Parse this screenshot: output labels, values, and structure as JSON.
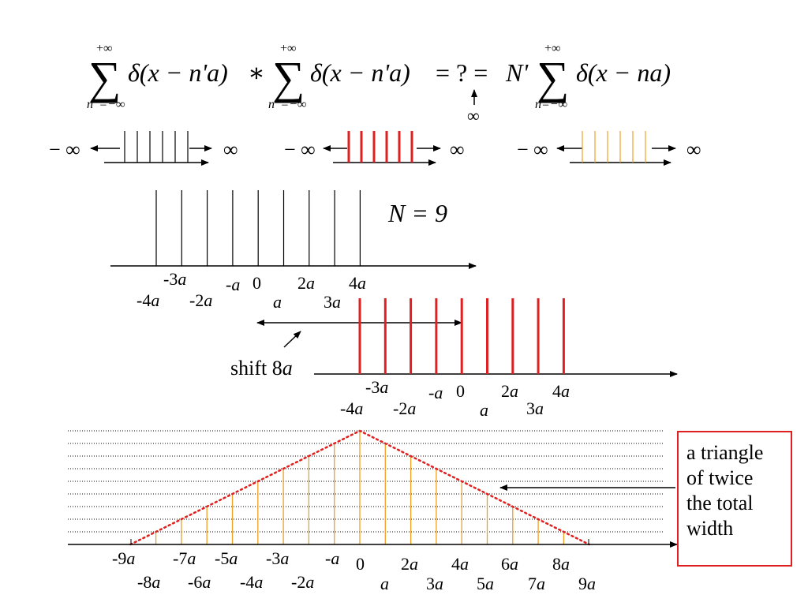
{
  "equation": {
    "sum_upper": "+∞",
    "sum_lower_prime": "n' =−∞",
    "sum_lower": "n=−∞",
    "term_prime": "δ(x − n'a)",
    "convolution_op": "∗",
    "equals_question": "= ? =",
    "n_prime": "N'",
    "term": "δ(x − na)",
    "infinity_below": "∞"
  },
  "mini_trains": [
    {
      "left_label": "− ∞",
      "right_label": "∞",
      "color": "#000000",
      "line_count": 6
    },
    {
      "left_label": "− ∞",
      "right_label": "∞",
      "color": "#e02020",
      "line_count": 6
    },
    {
      "left_label": "− ∞",
      "right_label": "∞",
      "color": "#f0a020",
      "line_count": 6
    }
  ],
  "n_label": "N = 9",
  "comb1": {
    "color": "#000000",
    "spike_count": 9,
    "labels_upper": [
      {
        "num": "-3",
        "sym": "a"
      },
      {
        "num": "-",
        "sym": "a"
      },
      {
        "num": "0",
        "sym": ""
      },
      {
        "num": "2",
        "sym": "a"
      },
      {
        "num": "4",
        "sym": "a"
      }
    ],
    "labels_lower": [
      {
        "num": "-4",
        "sym": "a"
      },
      {
        "num": "-2",
        "sym": "a"
      },
      {
        "num": "",
        "sym": "a"
      },
      {
        "num": "3",
        "sym": "a"
      }
    ]
  },
  "shift_label": {
    "num": "shift 8",
    "sym": "a"
  },
  "comb2": {
    "color": "#e02020",
    "spike_count": 9,
    "labels_upper": [
      {
        "num": "-3",
        "sym": "a"
      },
      {
        "num": "-",
        "sym": "a"
      },
      {
        "num": "0",
        "sym": ""
      },
      {
        "num": "2",
        "sym": "a"
      },
      {
        "num": "4",
        "sym": "a"
      }
    ],
    "labels_lower": [
      {
        "num": "-4",
        "sym": "a"
      },
      {
        "num": "-2",
        "sym": "a"
      },
      {
        "num": "",
        "sym": "a"
      },
      {
        "num": "3",
        "sym": "a"
      }
    ]
  },
  "triangle": {
    "spike_color": "#f0a020",
    "outline_color": "#e02020",
    "peak": 9,
    "positions": [
      -8,
      -7,
      -6,
      -5,
      -4,
      -3,
      -2,
      -1,
      0,
      1,
      2,
      3,
      4,
      5,
      6,
      7,
      8
    ],
    "heights": [
      1,
      2,
      3,
      4,
      5,
      6,
      7,
      8,
      9,
      8,
      7,
      6,
      5,
      4,
      3,
      2,
      1
    ],
    "labels_upper": [
      {
        "num": "-9",
        "sym": "a"
      },
      {
        "num": "-7",
        "sym": "a"
      },
      {
        "num": "-5",
        "sym": "a"
      },
      {
        "num": "-3",
        "sym": "a"
      },
      {
        "num": "-",
        "sym": "a"
      },
      {
        "num": "0",
        "sym": ""
      },
      {
        "num": "2",
        "sym": "a"
      },
      {
        "num": "4",
        "sym": "a"
      },
      {
        "num": "6",
        "sym": "a"
      },
      {
        "num": "8",
        "sym": "a"
      }
    ],
    "labels_lower": [
      {
        "num": "-8",
        "sym": "a"
      },
      {
        "num": "-6",
        "sym": "a"
      },
      {
        "num": "-4",
        "sym": "a"
      },
      {
        "num": "-2",
        "sym": "a"
      },
      {
        "num": "",
        "sym": "a"
      },
      {
        "num": "3",
        "sym": "a"
      },
      {
        "num": "5",
        "sym": "a"
      },
      {
        "num": "7",
        "sym": "a"
      },
      {
        "num": "9",
        "sym": "a"
      }
    ]
  },
  "note": {
    "line1": "a triangle",
    "line2": "of twice",
    "line3": "the total",
    "line4": "width"
  }
}
